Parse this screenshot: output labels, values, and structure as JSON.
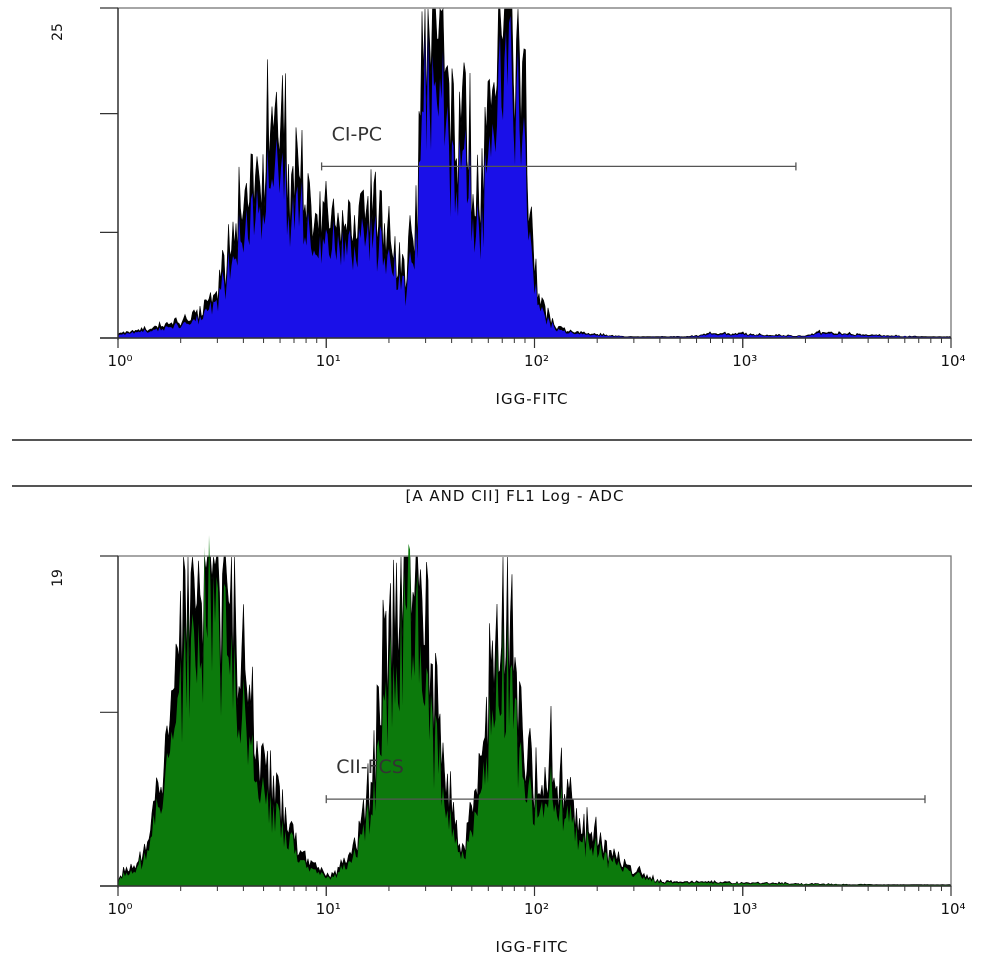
{
  "section_title": "[A AND CII] FL1 Log - ADC",
  "chart_data": [
    {
      "type": "area",
      "xlabel": "IGG-FITC",
      "x_scale": "log",
      "xlim": [
        1,
        10000
      ],
      "x_ticks": [
        {
          "value": 1,
          "label": "10⁰"
        },
        {
          "value": 10,
          "label": "10¹"
        },
        {
          "value": 100,
          "label": "10²"
        },
        {
          "value": 1000,
          "label": "10³"
        },
        {
          "value": 10000,
          "label": "10⁴"
        }
      ],
      "ylim": [
        0,
        25
      ],
      "y_ticks": [
        0,
        8,
        17,
        25
      ],
      "y_max_label": "25",
      "fill_color": "#1a10e8",
      "outline_color": "#000000",
      "gate": {
        "label": "CI-PC",
        "x_start": 9.5,
        "x_end": 1800,
        "y": 13
      },
      "series": [
        {
          "x": [
            1,
            1.2,
            1.5,
            2,
            2.5,
            3,
            3.5,
            4,
            4.5,
            5,
            5.5,
            6,
            7,
            8,
            9,
            10,
            12,
            14,
            16,
            18,
            20,
            22,
            24,
            26,
            28,
            30,
            32,
            35,
            38,
            42,
            46,
            50,
            55,
            60,
            65,
            70,
            75,
            80,
            85,
            90,
            100,
            110,
            130,
            160,
            200,
            300,
            600,
            700,
            2000,
            2300,
            10000
          ],
          "y": [
            0.3,
            0.4,
            0.6,
            0.9,
            1.6,
            3.0,
            5.5,
            7.5,
            9.5,
            10.0,
            11.0,
            13.0,
            10.0,
            8.5,
            7.0,
            6.5,
            6.5,
            7.0,
            8.0,
            7.5,
            6.0,
            4.5,
            3.5,
            6.0,
            11.0,
            17.0,
            19.0,
            19.5,
            17.0,
            11.0,
            13.0,
            10.0,
            7.0,
            12.0,
            16.0,
            19.0,
            23.0,
            21.0,
            16.0,
            11.0,
            4.0,
            1.5,
            0.6,
            0.3,
            0.2,
            0.05,
            0.1,
            0.3,
            0.1,
            0.3,
            0
          ]
        }
      ]
    },
    {
      "type": "area",
      "xlabel": "IGG-FITC",
      "x_scale": "log",
      "xlim": [
        1,
        10000
      ],
      "x_ticks": [
        {
          "value": 1,
          "label": "10⁰"
        },
        {
          "value": 10,
          "label": "10¹"
        },
        {
          "value": 100,
          "label": "10²"
        },
        {
          "value": 1000,
          "label": "10³"
        },
        {
          "value": 10000,
          "label": "10⁴"
        }
      ],
      "ylim": [
        0,
        19
      ],
      "y_ticks": [
        0,
        10,
        19
      ],
      "y_max_label": "19",
      "fill_color": "#0c7a0c",
      "outline_color": "#000000",
      "gate": {
        "label": "CII-FCS",
        "x_start": 10,
        "x_end": 7500,
        "y": 5
      },
      "series": [
        {
          "x": [
            1,
            1.2,
            1.4,
            1.6,
            1.8,
            2,
            2.2,
            2.5,
            2.8,
            3,
            3.5,
            4,
            4.5,
            5,
            6,
            7,
            8,
            9,
            10,
            11,
            12,
            14,
            16,
            18,
            20,
            22,
            24,
            26,
            28,
            30,
            32,
            35,
            38,
            42,
            46,
            50,
            55,
            60,
            65,
            70,
            75,
            80,
            85,
            90,
            100,
            110,
            120,
            140,
            160,
            180,
            200,
            230,
            260,
            300,
            350,
            400,
            10000
          ],
          "y": [
            0.5,
            1.0,
            2.0,
            4.5,
            8.0,
            11.5,
            13.0,
            15.0,
            16.0,
            15.0,
            12.0,
            9.0,
            6.5,
            5.0,
            3.5,
            2.0,
            1.2,
            0.8,
            0.5,
            0.6,
            1.0,
            2.0,
            4.0,
            7.0,
            10.5,
            12.5,
            14.0,
            16.0,
            14.0,
            12.0,
            10.0,
            7.0,
            4.5,
            2.5,
            2.0,
            3.0,
            5.0,
            8.0,
            10.0,
            12.0,
            11.0,
            10.0,
            8.0,
            6.0,
            4.5,
            4.0,
            5.0,
            4.0,
            3.0,
            2.5,
            2.0,
            1.5,
            1.0,
            0.7,
            0.4,
            0.2,
            0
          ]
        }
      ]
    }
  ]
}
